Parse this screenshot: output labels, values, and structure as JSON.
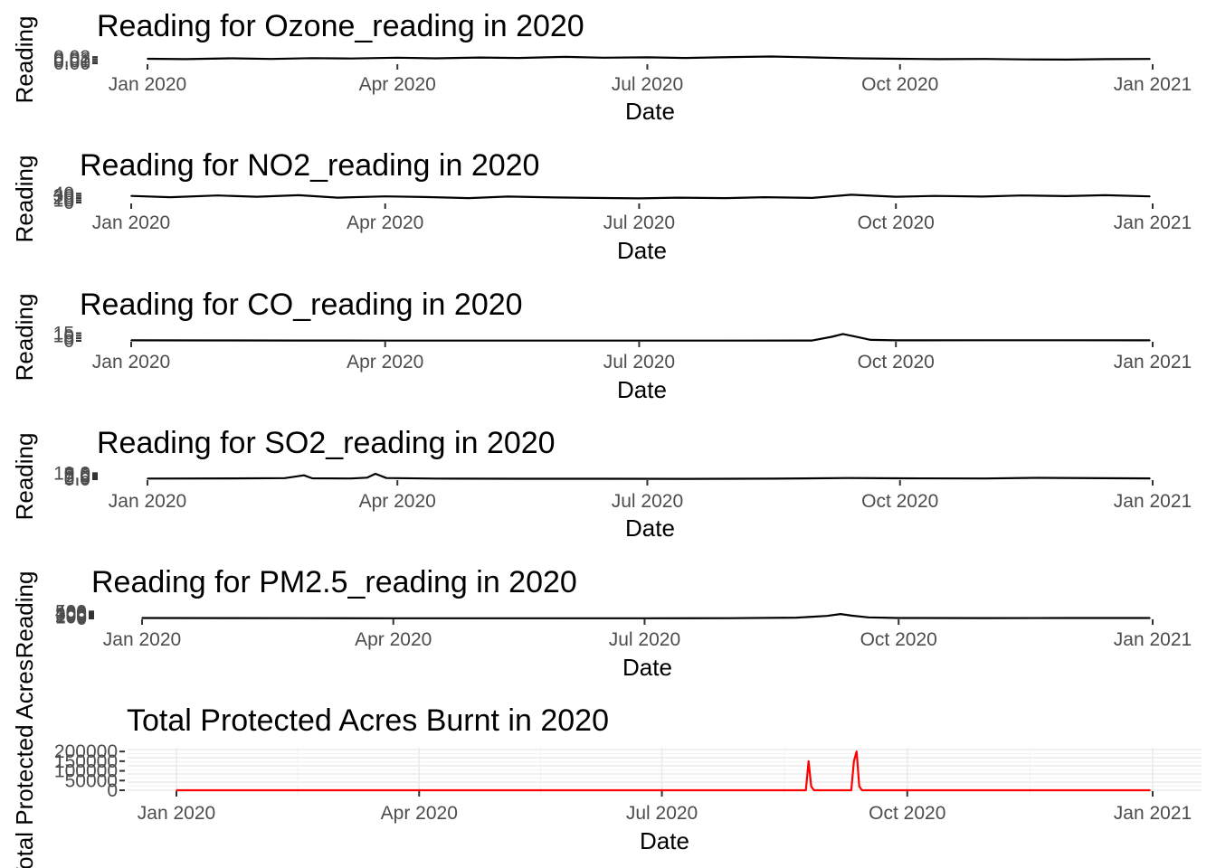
{
  "chart_data": [
    {
      "type": "line",
      "title": "Reading for Ozone_reading in 2020",
      "xlabel": "Date",
      "ylabel": "Reading",
      "x_ticks": [
        "Jan 2020",
        "Apr 2020",
        "Jul 2020",
        "Oct 2020",
        "Jan 2021"
      ],
      "y_ticks": [
        "0.00",
        "0.01",
        "0.02",
        "0.03"
      ],
      "ylim": [
        0,
        0.035
      ],
      "series": [
        {
          "color": "#000000",
          "x": [
            "2020-01-01",
            "2020-01-15",
            "2020-02-01",
            "2020-02-15",
            "2020-03-01",
            "2020-03-15",
            "2020-04-01",
            "2020-04-15",
            "2020-05-01",
            "2020-05-15",
            "2020-06-01",
            "2020-06-15",
            "2020-07-01",
            "2020-07-15",
            "2020-08-01",
            "2020-08-15",
            "2020-09-01",
            "2020-09-15",
            "2020-10-01",
            "2020-10-15",
            "2020-11-01",
            "2020-11-15",
            "2020-12-01",
            "2020-12-15",
            "2020-12-31"
          ],
          "values": [
            0.022,
            0.02,
            0.024,
            0.021,
            0.025,
            0.023,
            0.027,
            0.024,
            0.028,
            0.026,
            0.031,
            0.027,
            0.029,
            0.026,
            0.03,
            0.033,
            0.028,
            0.024,
            0.022,
            0.02,
            0.021,
            0.019,
            0.018,
            0.02,
            0.021
          ]
        }
      ]
    },
    {
      "type": "line",
      "title": "Reading for NO2_reading in 2020",
      "xlabel": "Date",
      "ylabel": "Reading",
      "x_ticks": [
        "Jan 2020",
        "Apr 2020",
        "Jul 2020",
        "Oct 2020",
        "Jan 2021"
      ],
      "y_ticks": [
        "0",
        "10",
        "20",
        "30",
        "40"
      ],
      "ylim": [
        0,
        45
      ],
      "series": [
        {
          "color": "#000000",
          "x": [
            "2020-01-01",
            "2020-01-15",
            "2020-02-01",
            "2020-02-15",
            "2020-03-01",
            "2020-03-15",
            "2020-04-01",
            "2020-04-15",
            "2020-05-01",
            "2020-05-15",
            "2020-06-01",
            "2020-06-15",
            "2020-07-01",
            "2020-07-15",
            "2020-08-01",
            "2020-08-15",
            "2020-09-01",
            "2020-09-15",
            "2020-10-01",
            "2020-10-15",
            "2020-11-01",
            "2020-11-15",
            "2020-12-01",
            "2020-12-15",
            "2020-12-31"
          ],
          "values": [
            30,
            24,
            32,
            26,
            33,
            22,
            28,
            25,
            20,
            27,
            23,
            21,
            19,
            22,
            20,
            24,
            21,
            35,
            26,
            30,
            27,
            32,
            29,
            33,
            28
          ]
        }
      ]
    },
    {
      "type": "line",
      "title": "Reading for CO_reading in 2020",
      "xlabel": "Date",
      "ylabel": "Reading",
      "x_ticks": [
        "Jan 2020",
        "Apr 2020",
        "Jul 2020",
        "Oct 2020",
        "Jan 2021"
      ],
      "y_ticks": [
        "0",
        "5",
        "10",
        "15"
      ],
      "ylim": [
        0,
        16
      ],
      "series": [
        {
          "color": "#000000",
          "x": [
            "2020-01-01",
            "2020-02-01",
            "2020-03-01",
            "2020-04-01",
            "2020-05-01",
            "2020-06-01",
            "2020-07-01",
            "2020-08-01",
            "2020-09-01",
            "2020-09-08",
            "2020-09-12",
            "2020-09-16",
            "2020-09-22",
            "2020-10-01",
            "2020-11-01",
            "2020-12-01",
            "2020-12-31"
          ],
          "values": [
            1.0,
            0.9,
            0.8,
            0.6,
            0.5,
            0.5,
            0.5,
            0.6,
            0.8,
            8.0,
            13.5,
            9.0,
            2.0,
            1.0,
            1.2,
            1.3,
            1.1
          ]
        }
      ]
    },
    {
      "type": "line",
      "title": "Reading for SO2_reading in 2020",
      "xlabel": "Date",
      "ylabel": "Reading",
      "x_ticks": [
        "Jan 2020",
        "Apr 2020",
        "Jul 2020",
        "Oct 2020",
        "Jan 2021"
      ],
      "y_ticks": [
        "0.0",
        "2.5",
        "5.0",
        "7.5",
        "10.0"
      ],
      "ylim": [
        0,
        12
      ],
      "series": [
        {
          "color": "#000000",
          "x": [
            "2020-01-01",
            "2020-02-01",
            "2020-02-20",
            "2020-02-27",
            "2020-03-01",
            "2020-03-15",
            "2020-03-21",
            "2020-03-24",
            "2020-03-28",
            "2020-04-15",
            "2020-05-15",
            "2020-06-15",
            "2020-07-15",
            "2020-08-15",
            "2020-09-12",
            "2020-10-01",
            "2020-11-01",
            "2020-11-20",
            "2020-12-31"
          ],
          "values": [
            1.0,
            1.4,
            1.8,
            6.5,
            1.5,
            1.2,
            2.5,
            9.0,
            2.0,
            1.0,
            0.8,
            0.7,
            0.6,
            0.9,
            2.0,
            1.5,
            1.2,
            2.2,
            1.3
          ]
        }
      ]
    },
    {
      "type": "line",
      "title": "Reading for PM2.5_reading in 2020",
      "xlabel": "Date",
      "ylabel": "Reading",
      "x_ticks": [
        "Jan 2020",
        "Apr 2020",
        "Jul 2020",
        "Oct 2020",
        "Jan 2021"
      ],
      "y_ticks": [
        "0",
        "100",
        "200",
        "300",
        "400",
        "500"
      ],
      "ylim": [
        0,
        520
      ],
      "series": [
        {
          "color": "#000000",
          "x": [
            "2020-01-01",
            "2020-02-01",
            "2020-03-01",
            "2020-04-01",
            "2020-05-01",
            "2020-06-01",
            "2020-07-01",
            "2020-08-01",
            "2020-08-25",
            "2020-09-05",
            "2020-09-10",
            "2020-09-14",
            "2020-09-20",
            "2020-10-01",
            "2020-11-01",
            "2020-12-01",
            "2020-12-31"
          ],
          "values": [
            30,
            25,
            20,
            15,
            12,
            14,
            15,
            18,
            60,
            180,
            320,
            200,
            80,
            30,
            28,
            32,
            30
          ]
        }
      ]
    },
    {
      "type": "line",
      "title": "Total Protected Acres Burnt in 2020",
      "xlabel": "Date",
      "ylabel": "Total Protected Acres",
      "x_ticks": [
        "Jan 2020",
        "Apr 2020",
        "Jul 2020",
        "Oct 2020",
        "Jan 2021"
      ],
      "y_ticks": [
        "0",
        "50000",
        "100000",
        "150000",
        "200000"
      ],
      "ylim": [
        0,
        210000
      ],
      "grid": true,
      "series": [
        {
          "color": "#ff0000",
          "x": [
            "2020-01-01",
            "2020-08-24",
            "2020-08-25",
            "2020-08-26",
            "2020-08-27",
            "2020-09-10",
            "2020-09-11",
            "2020-09-12",
            "2020-09-13",
            "2020-09-14",
            "2020-12-31"
          ],
          "values": [
            0,
            0,
            150000,
            20000,
            0,
            0,
            150000,
            200000,
            20000,
            0,
            0
          ]
        }
      ]
    }
  ]
}
